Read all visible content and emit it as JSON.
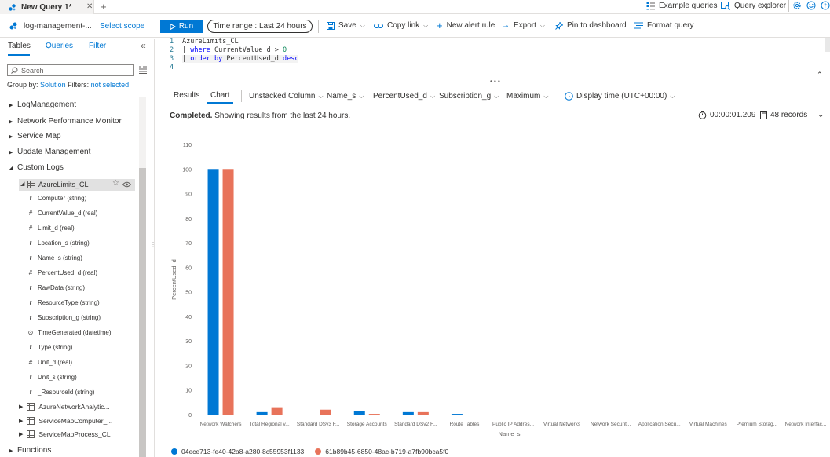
{
  "tabstrip": {
    "tab_title": "New Query 1*",
    "close_glyph": "✕",
    "add_glyph": "+",
    "example_queries": "Example queries",
    "query_explorer": "Query explorer"
  },
  "toolbar": {
    "workspace": "log-management-...",
    "select_scope": "Select scope",
    "run": "Run",
    "time_range": "Time range : Last 24 hours",
    "save": "Save",
    "copy_link": "Copy link",
    "new_alert_rule": "New alert rule",
    "export": "Export",
    "pin_to_dashboard": "Pin to dashboard",
    "format_query": "Format query"
  },
  "left_panel": {
    "tabs": [
      "Tables",
      "Queries",
      "Filter"
    ],
    "search_placeholder": "Search",
    "group_by_label": "Group by:",
    "group_by_value": "Solution",
    "filters_label": "Filters:",
    "filters_value": "not selected",
    "tree": [
      {
        "label": "LogManagement",
        "expanded": false
      },
      {
        "label": "Network Performance Monitor",
        "expanded": false
      },
      {
        "label": "Service Map",
        "expanded": false
      },
      {
        "label": "Update Management",
        "expanded": false
      },
      {
        "label": "Custom Logs",
        "expanded": true
      }
    ],
    "table_name": "AzureLimits_CL",
    "columns": [
      {
        "glyph": "t",
        "label": "Computer (string)"
      },
      {
        "glyph": "#",
        "label": "CurrentValue_d (real)"
      },
      {
        "glyph": "#",
        "label": "Limit_d (real)"
      },
      {
        "glyph": "t",
        "label": "Location_s (string)"
      },
      {
        "glyph": "t",
        "label": "Name_s (string)"
      },
      {
        "glyph": "#",
        "label": "PercentUsed_d (real)"
      },
      {
        "glyph": "t",
        "label": "RawData (string)"
      },
      {
        "glyph": "t",
        "label": "ResourceType (string)"
      },
      {
        "glyph": "t",
        "label": "Subscription_g (string)"
      },
      {
        "glyph": "clock",
        "label": "TimeGenerated (datetime)"
      },
      {
        "glyph": "t",
        "label": "Type (string)"
      },
      {
        "glyph": "#",
        "label": "Unit_d (real)"
      },
      {
        "glyph": "t",
        "label": "Unit_s (string)"
      },
      {
        "glyph": "t",
        "label": "_ResourceId (string)"
      }
    ],
    "other_tables": [
      "AzureNetworkAnalytic...",
      "ServiceMapComputer_...",
      "ServiceMapProcess_CL"
    ],
    "functions": "Functions"
  },
  "editor": {
    "line_numbers": [
      "1",
      "2",
      "3",
      "4"
    ],
    "line1": "AzureLimits_CL",
    "line2_pipe": "| ",
    "line2_kw": "where",
    "line2_mid": " CurrentValue_d > ",
    "line2_num": "0",
    "line3_pipe": "| ",
    "line3_kw": "order by",
    "line3_mid": " PercentUsed_d ",
    "line3_kw2": "desc"
  },
  "results": {
    "tabs": [
      "Results",
      "Chart"
    ],
    "chart_type": "Unstacked Column",
    "x_column": "Name_s",
    "y_column": "PercentUsed_d",
    "split_column": "Subscription_g",
    "aggregation": "Maximum",
    "display_time": "Display time (UTC+00:00)",
    "completed_bold": "Completed.",
    "completed_text": " Showing results from the last 24 hours.",
    "duration": "00:00:01.209",
    "records": "48 records"
  },
  "colors": {
    "accent": "#0078d4",
    "series1": "#0078d4",
    "series2": "#e8735a"
  },
  "chart_data": {
    "type": "bar",
    "categories": [
      "Network Watchers",
      "Total Regional v...",
      "Standard DSv3 F...",
      "Storage Accounts",
      "Standard DSv2 F...",
      "Route Tables",
      "Public IP Addres...",
      "Virtual Networks",
      "Network Securit...",
      "Application Secu...",
      "Virtual Machines",
      "Premium Storag...",
      "Network Interfac..."
    ],
    "series": [
      {
        "name": "04ece713-fe40-42a8-a280-8c55953f1133",
        "values": [
          100,
          1,
          0,
          1.5,
          1,
          0.3,
          0,
          0,
          0,
          0,
          0,
          0,
          0
        ]
      },
      {
        "name": "61b89b45-6850-48ac-b719-a7fb90bca5f0",
        "values": [
          100,
          3,
          2,
          0.3,
          1,
          0,
          0,
          0,
          0,
          0,
          0,
          0,
          0
        ]
      }
    ],
    "xlabel": "Name_s",
    "ylabel": "PercentUsed_d",
    "ylim": [
      0,
      110
    ],
    "yticks": [
      0,
      10,
      20,
      30,
      40,
      50,
      60,
      70,
      80,
      90,
      100,
      110
    ],
    "grid": false,
    "legend": "bottom-left"
  }
}
